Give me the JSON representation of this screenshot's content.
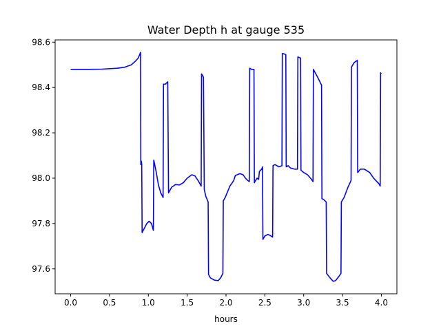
{
  "chart_data": {
    "type": "line",
    "title": "Water Depth h at gauge 535",
    "xlabel": "hours",
    "ylabel": "",
    "xlim": [
      -0.2,
      4.2
    ],
    "ylim": [
      97.49,
      98.61
    ],
    "xticks": [
      0.0,
      0.5,
      1.0,
      1.5,
      2.0,
      2.5,
      3.0,
      3.5,
      4.0
    ],
    "xtick_labels": [
      "0.0",
      "0.5",
      "1.0",
      "1.5",
      "2.0",
      "2.5",
      "3.0",
      "3.5",
      "4.0"
    ],
    "yticks": [
      97.6,
      97.8,
      98.0,
      98.2,
      98.4,
      98.6
    ],
    "ytick_labels": [
      "97.6",
      "97.8",
      "98.0",
      "98.2",
      "98.4",
      "98.6"
    ],
    "grid": false,
    "legend": "none",
    "series": [
      {
        "color": "#0000ff",
        "points": [
          [
            0.0,
            98.48
          ],
          [
            0.2,
            98.48
          ],
          [
            0.4,
            98.481
          ],
          [
            0.6,
            98.485
          ],
          [
            0.7,
            98.49
          ],
          [
            0.78,
            98.5
          ],
          [
            0.83,
            98.515
          ],
          [
            0.87,
            98.53
          ],
          [
            0.9,
            98.555
          ],
          [
            0.903,
            98.06
          ],
          [
            0.91,
            98.075
          ],
          [
            0.915,
            98.06
          ],
          [
            0.92,
            97.76
          ],
          [
            0.95,
            97.78
          ],
          [
            0.98,
            97.8
          ],
          [
            1.01,
            97.81
          ],
          [
            1.04,
            97.8
          ],
          [
            1.065,
            97.77
          ],
          [
            1.07,
            98.08
          ],
          [
            1.1,
            98.03
          ],
          [
            1.13,
            97.97
          ],
          [
            1.16,
            97.935
          ],
          [
            1.19,
            97.915
          ],
          [
            1.195,
            98.415
          ],
          [
            1.22,
            98.415
          ],
          [
            1.25,
            98.425
          ],
          [
            1.26,
            97.935
          ],
          [
            1.3,
            97.96
          ],
          [
            1.35,
            97.972
          ],
          [
            1.4,
            97.97
          ],
          [
            1.45,
            97.98
          ],
          [
            1.5,
            98.0
          ],
          [
            1.56,
            98.015
          ],
          [
            1.6,
            98.01
          ],
          [
            1.64,
            97.99
          ],
          [
            1.68,
            97.965
          ],
          [
            1.685,
            98.46
          ],
          [
            1.695,
            98.455
          ],
          [
            1.71,
            98.445
          ],
          [
            1.72,
            97.95
          ],
          [
            1.74,
            97.92
          ],
          [
            1.77,
            97.895
          ],
          [
            1.775,
            97.575
          ],
          [
            1.8,
            97.56
          ],
          [
            1.85,
            97.55
          ],
          [
            1.9,
            97.548
          ],
          [
            1.93,
            97.56
          ],
          [
            1.96,
            97.58
          ],
          [
            1.965,
            97.9
          ],
          [
            1.99,
            97.915
          ],
          [
            2.05,
            97.965
          ],
          [
            2.1,
            97.99
          ],
          [
            2.12,
            98.012
          ],
          [
            2.18,
            98.02
          ],
          [
            2.22,
            98.015
          ],
          [
            2.25,
            98.0
          ],
          [
            2.28,
            97.99
          ],
          [
            2.3,
            97.985
          ],
          [
            2.305,
            98.485
          ],
          [
            2.33,
            98.48
          ],
          [
            2.36,
            98.48
          ],
          [
            2.365,
            97.98
          ],
          [
            2.38,
            97.99
          ],
          [
            2.4,
            98.0
          ],
          [
            2.42,
            97.995
          ],
          [
            2.43,
            98.03
          ],
          [
            2.46,
            98.04
          ],
          [
            2.47,
            98.05
          ],
          [
            2.475,
            97.73
          ],
          [
            2.5,
            97.745
          ],
          [
            2.54,
            97.752
          ],
          [
            2.58,
            97.745
          ],
          [
            2.6,
            97.74
          ],
          [
            2.605,
            98.055
          ],
          [
            2.63,
            98.06
          ],
          [
            2.68,
            98.05
          ],
          [
            2.72,
            98.055
          ],
          [
            2.725,
            98.55
          ],
          [
            2.75,
            98.548
          ],
          [
            2.77,
            98.545
          ],
          [
            2.775,
            98.05
          ],
          [
            2.8,
            98.055
          ],
          [
            2.83,
            98.045
          ],
          [
            2.88,
            98.04
          ],
          [
            2.92,
            98.04
          ],
          [
            2.925,
            98.535
          ],
          [
            2.945,
            98.532
          ],
          [
            2.96,
            98.53
          ],
          [
            2.965,
            98.035
          ],
          [
            3.0,
            98.025
          ],
          [
            3.05,
            98.015
          ],
          [
            3.1,
            97.995
          ],
          [
            3.12,
            97.985
          ],
          [
            3.125,
            98.48
          ],
          [
            3.18,
            98.445
          ],
          [
            3.23,
            98.41
          ],
          [
            3.235,
            97.91
          ],
          [
            3.26,
            97.905
          ],
          [
            3.29,
            97.895
          ],
          [
            3.295,
            97.58
          ],
          [
            3.34,
            97.56
          ],
          [
            3.38,
            97.545
          ],
          [
            3.41,
            97.548
          ],
          [
            3.45,
            97.565
          ],
          [
            3.48,
            97.58
          ],
          [
            3.485,
            97.895
          ],
          [
            3.52,
            97.915
          ],
          [
            3.57,
            97.96
          ],
          [
            3.61,
            97.99
          ],
          [
            3.615,
            98.49
          ],
          [
            3.65,
            98.51
          ],
          [
            3.69,
            98.52
          ],
          [
            3.695,
            98.025
          ],
          [
            3.73,
            98.04
          ],
          [
            3.78,
            98.04
          ],
          [
            3.85,
            98.025
          ],
          [
            3.9,
            98.0
          ],
          [
            3.97,
            97.975
          ],
          [
            3.985,
            97.965
          ],
          [
            3.99,
            98.465
          ],
          [
            4.0,
            98.46
          ]
        ]
      }
    ]
  }
}
